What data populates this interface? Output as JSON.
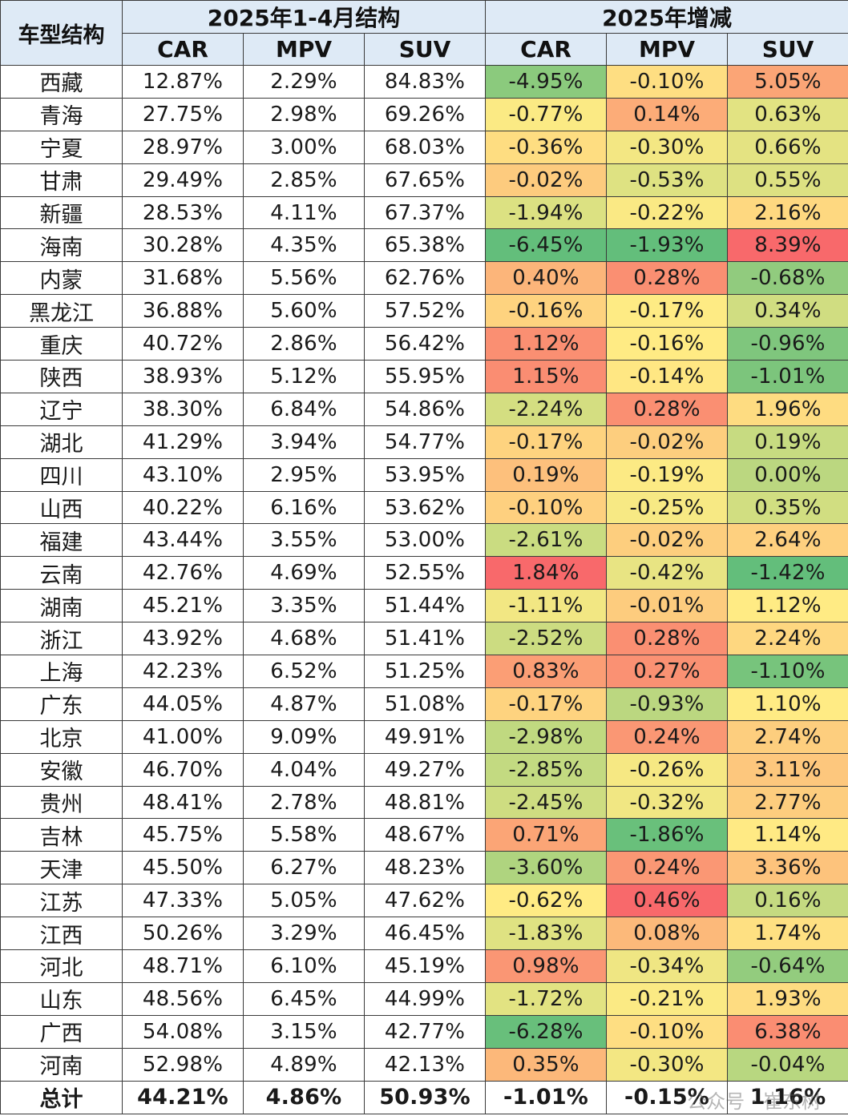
{
  "header": {
    "corner": "车型结构",
    "group1": "2025年1-4月结构",
    "group2": "2025年增减",
    "cols": [
      "CAR",
      "MPV",
      "SUV",
      "CAR",
      "MPV",
      "SUV"
    ]
  },
  "rows": [
    {
      "name": "西藏",
      "s": [
        "12.87%",
        "2.29%",
        "84.83%"
      ],
      "d": [
        "-4.95%",
        "-0.10%",
        "5.05%"
      ]
    },
    {
      "name": "青海",
      "s": [
        "27.75%",
        "2.98%",
        "69.26%"
      ],
      "d": [
        "-0.77%",
        "0.14%",
        "0.63%"
      ]
    },
    {
      "name": "宁夏",
      "s": [
        "28.97%",
        "3.00%",
        "68.03%"
      ],
      "d": [
        "-0.36%",
        "-0.30%",
        "0.66%"
      ]
    },
    {
      "name": "甘肃",
      "s": [
        "29.49%",
        "2.85%",
        "67.65%"
      ],
      "d": [
        "-0.02%",
        "-0.53%",
        "0.55%"
      ]
    },
    {
      "name": "新疆",
      "s": [
        "28.53%",
        "4.11%",
        "67.37%"
      ],
      "d": [
        "-1.94%",
        "-0.22%",
        "2.16%"
      ]
    },
    {
      "name": "海南",
      "s": [
        "30.28%",
        "4.35%",
        "65.38%"
      ],
      "d": [
        "-6.45%",
        "-1.93%",
        "8.39%"
      ]
    },
    {
      "name": "内蒙",
      "s": [
        "31.68%",
        "5.56%",
        "62.76%"
      ],
      "d": [
        "0.40%",
        "0.28%",
        "-0.68%"
      ]
    },
    {
      "name": "黑龙江",
      "s": [
        "36.88%",
        "5.60%",
        "57.52%"
      ],
      "d": [
        "-0.16%",
        "-0.17%",
        "0.34%"
      ]
    },
    {
      "name": "重庆",
      "s": [
        "40.72%",
        "2.86%",
        "56.42%"
      ],
      "d": [
        "1.12%",
        "-0.16%",
        "-0.96%"
      ]
    },
    {
      "name": "陕西",
      "s": [
        "38.93%",
        "5.12%",
        "55.95%"
      ],
      "d": [
        "1.15%",
        "-0.14%",
        "-1.01%"
      ]
    },
    {
      "name": "辽宁",
      "s": [
        "38.30%",
        "6.84%",
        "54.86%"
      ],
      "d": [
        "-2.24%",
        "0.28%",
        "1.96%"
      ]
    },
    {
      "name": "湖北",
      "s": [
        "41.29%",
        "3.94%",
        "54.77%"
      ],
      "d": [
        "-0.17%",
        "-0.02%",
        "0.19%"
      ]
    },
    {
      "name": "四川",
      "s": [
        "43.10%",
        "2.95%",
        "53.95%"
      ],
      "d": [
        "0.19%",
        "-0.19%",
        "0.00%"
      ]
    },
    {
      "name": "山西",
      "s": [
        "40.22%",
        "6.16%",
        "53.62%"
      ],
      "d": [
        "-0.10%",
        "-0.25%",
        "0.35%"
      ]
    },
    {
      "name": "福建",
      "s": [
        "43.44%",
        "3.55%",
        "53.00%"
      ],
      "d": [
        "-2.61%",
        "-0.02%",
        "2.64%"
      ]
    },
    {
      "name": "云南",
      "s": [
        "42.76%",
        "4.69%",
        "52.55%"
      ],
      "d": [
        "1.84%",
        "-0.42%",
        "-1.42%"
      ]
    },
    {
      "name": "湖南",
      "s": [
        "45.21%",
        "3.35%",
        "51.44%"
      ],
      "d": [
        "-1.11%",
        "-0.01%",
        "1.12%"
      ]
    },
    {
      "name": "浙江",
      "s": [
        "43.92%",
        "4.68%",
        "51.41%"
      ],
      "d": [
        "-2.52%",
        "0.28%",
        "2.24%"
      ]
    },
    {
      "name": "上海",
      "s": [
        "42.23%",
        "6.52%",
        "51.25%"
      ],
      "d": [
        "0.83%",
        "0.27%",
        "-1.10%"
      ]
    },
    {
      "name": "广东",
      "s": [
        "44.05%",
        "4.87%",
        "51.08%"
      ],
      "d": [
        "-0.17%",
        "-0.93%",
        "1.10%"
      ]
    },
    {
      "name": "北京",
      "s": [
        "41.00%",
        "9.09%",
        "49.91%"
      ],
      "d": [
        "-2.98%",
        "0.24%",
        "2.74%"
      ]
    },
    {
      "name": "安徽",
      "s": [
        "46.70%",
        "4.04%",
        "49.27%"
      ],
      "d": [
        "-2.85%",
        "-0.26%",
        "3.11%"
      ]
    },
    {
      "name": "贵州",
      "s": [
        "48.41%",
        "2.78%",
        "48.81%"
      ],
      "d": [
        "-2.45%",
        "-0.32%",
        "2.77%"
      ]
    },
    {
      "name": "吉林",
      "s": [
        "45.75%",
        "5.58%",
        "48.67%"
      ],
      "d": [
        "0.71%",
        "-1.86%",
        "1.14%"
      ]
    },
    {
      "name": "天津",
      "s": [
        "45.50%",
        "6.27%",
        "48.23%"
      ],
      "d": [
        "-3.60%",
        "0.24%",
        "3.36%"
      ]
    },
    {
      "name": "江苏",
      "s": [
        "47.33%",
        "5.05%",
        "47.62%"
      ],
      "d": [
        "-0.62%",
        "0.46%",
        "0.16%"
      ]
    },
    {
      "name": "江西",
      "s": [
        "50.26%",
        "3.29%",
        "46.45%"
      ],
      "d": [
        "-1.83%",
        "0.08%",
        "1.74%"
      ]
    },
    {
      "name": "河北",
      "s": [
        "48.71%",
        "6.10%",
        "45.19%"
      ],
      "d": [
        "0.98%",
        "-0.34%",
        "-0.64%"
      ]
    },
    {
      "name": "山东",
      "s": [
        "48.56%",
        "6.45%",
        "44.99%"
      ],
      "d": [
        "-1.72%",
        "-0.21%",
        "1.93%"
      ]
    },
    {
      "name": "广西",
      "s": [
        "54.08%",
        "3.15%",
        "42.77%"
      ],
      "d": [
        "-6.28%",
        "-0.10%",
        "6.38%"
      ]
    },
    {
      "name": "河南",
      "s": [
        "52.98%",
        "4.89%",
        "42.13%"
      ],
      "d": [
        "0.35%",
        "-0.30%",
        "-0.04%"
      ]
    }
  ],
  "total": {
    "name": "总计",
    "s": [
      "44.21%",
      "4.86%",
      "50.93%"
    ],
    "d": [
      "-1.01%",
      "-0.15%",
      "1.16%"
    ]
  },
  "watermark": "公众号 · 崔东树",
  "colors": {
    "header_bg": "#deeaf6",
    "scale_green": "#63be7b",
    "scale_yellow": "#ffeb84",
    "scale_red": "#f8696b"
  }
}
